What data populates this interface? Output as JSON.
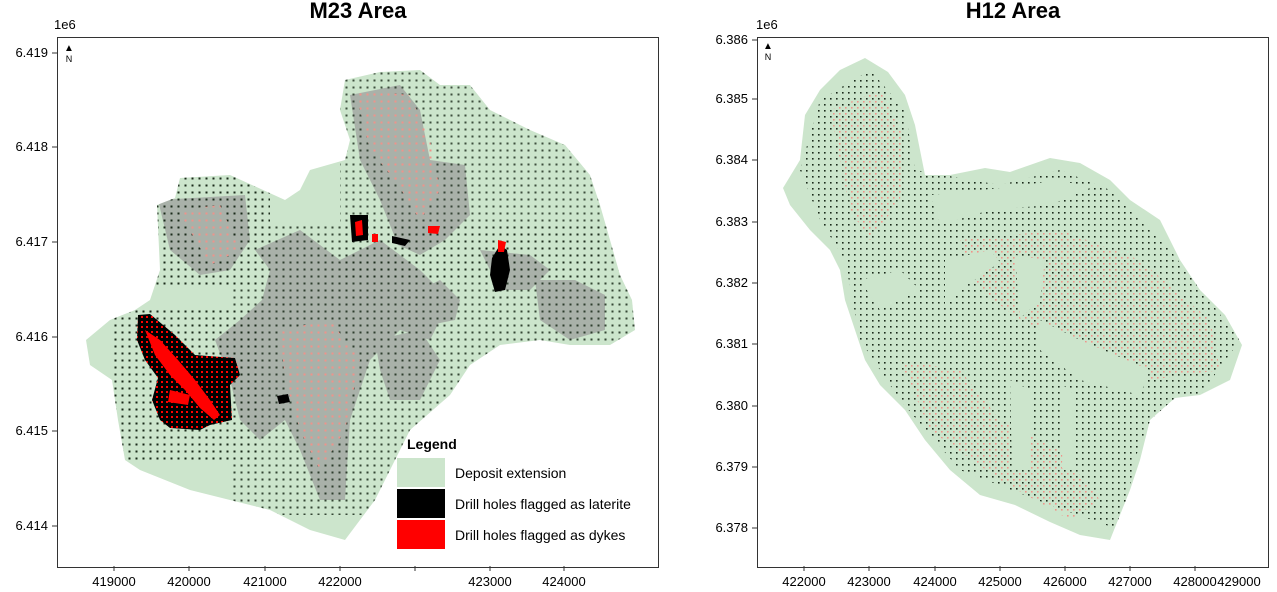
{
  "panels": {
    "m23": {
      "title": "M23 Area",
      "sci_notation": "1e6",
      "north_label": "N",
      "y_ticks": [
        "6.419",
        "6.418",
        "6.417",
        "6.416",
        "6.415",
        "6.414"
      ],
      "x_ticks": [
        "419000",
        "420000",
        "421000",
        "422000",
        "423000",
        "424000"
      ]
    },
    "h12": {
      "title": "H12 Area",
      "sci_notation": "1e6",
      "north_label": "N",
      "y_ticks": [
        "6.386",
        "6.385",
        "6.384",
        "6.383",
        "6.382",
        "6.381",
        "6.380",
        "6.379",
        "6.378"
      ],
      "x_ticks": [
        "422000",
        "423000",
        "424000",
        "425000",
        "426000",
        "427000",
        "428000",
        "429000"
      ]
    }
  },
  "legend": {
    "title": "Legend",
    "items": [
      {
        "label": "Deposit extension",
        "color": "#cce5cc"
      },
      {
        "label": "Drill holes flagged as laterite",
        "color": "#000000"
      },
      {
        "label": "Drill holes flagged as dykes",
        "color": "#ff0000"
      }
    ]
  },
  "colors": {
    "deposit": "#cce5cc",
    "grey_block": "#a9b1a9",
    "drill_dot": "#1a2a1a",
    "dyke_dot": "#f0928a",
    "laterite": "#000000",
    "dyke": "#ff0000"
  }
}
